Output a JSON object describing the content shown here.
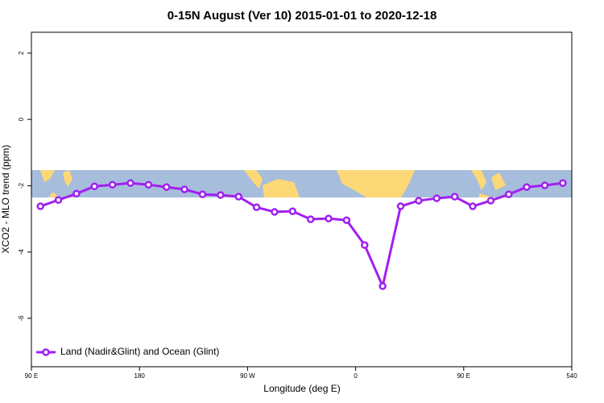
{
  "chart_data": {
    "type": "line",
    "title": "0-15N August (Ver 10)   2015-01-01 to 2020-12-18",
    "x_label": "Longitude (deg E)",
    "y_label": "XCO2 - MLO trend (ppm)",
    "x": [
      97.5,
      112.5,
      127.5,
      142.5,
      157.5,
      172.5,
      187.5,
      202.5,
      217.5,
      232.5,
      247.5,
      262.5,
      277.5,
      292.5,
      307.5,
      322.5,
      337.5,
      352.5,
      367.5,
      382.5,
      397.5,
      412.5,
      427.5,
      442.5,
      457.5,
      472.5,
      487.5,
      502.5,
      517.5,
      532.5
    ],
    "series": [
      {
        "name": "Land (Nadir&Glint) and Ocean (Glint)",
        "color": "#a020f0",
        "values": [
          -2.62,
          -2.43,
          -2.24,
          -2.02,
          -1.97,
          -1.92,
          -1.97,
          -2.04,
          -2.11,
          -2.26,
          -2.28,
          -2.33,
          -2.65,
          -2.79,
          -2.77,
          -3.01,
          -2.99,
          -3.04,
          -3.79,
          -5.03,
          -2.62,
          -2.45,
          -2.38,
          -2.33,
          -2.62,
          -2.45,
          -2.26,
          -2.04,
          -1.99,
          -1.92
        ]
      }
    ],
    "xlim": [
      90,
      540
    ],
    "xticks": [
      {
        "value": 90,
        "label": "90 E"
      },
      180,
      {
        "value": 270,
        "label": "90 W"
      },
      {
        "value": 360,
        "label": "0"
      },
      {
        "value": 450,
        "label": "90 E"
      },
      540
    ],
    "ylim": [
      -7.46,
      2.63
    ],
    "yticks": [
      -6,
      -4,
      -2,
      0,
      2
    ],
    "legend": "bottom-left"
  }
}
